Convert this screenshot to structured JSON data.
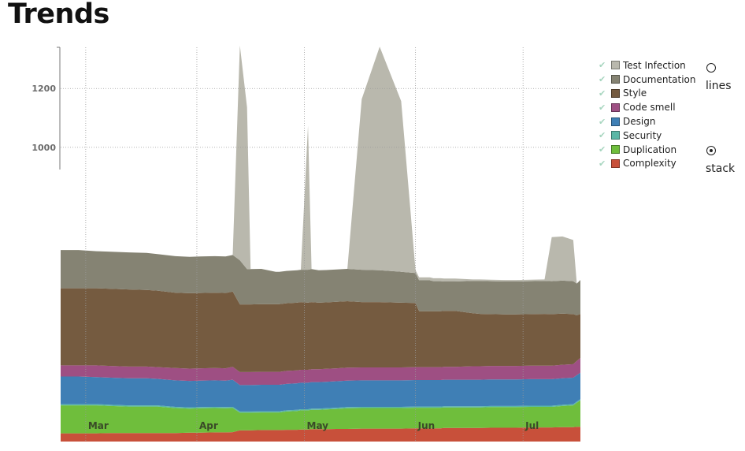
{
  "page": {
    "title": "Trends"
  },
  "chart_data": {
    "type": "area",
    "stacked": true,
    "x": [
      "02-23",
      "02-28",
      "03-04",
      "03-08",
      "03-13",
      "03-18",
      "03-21",
      "03-26",
      "03-30",
      "04-02",
      "04-06",
      "04-09",
      "04-11",
      "04-13",
      "04-15",
      "04-16",
      "04-19",
      "04-23",
      "04-24",
      "04-26",
      "04-29",
      "04-30",
      "05-02",
      "05-03",
      "05-05",
      "05-07",
      "05-10",
      "05-13",
      "05-17",
      "05-22",
      "05-28",
      "06-01",
      "06-02",
      "06-05",
      "06-06",
      "06-08",
      "06-09",
      "06-12",
      "06-17",
      "06-19",
      "06-22",
      "06-26",
      "06-29",
      "07-03",
      "07-07",
      "07-09",
      "07-12",
      "07-15",
      "07-16",
      "07-17"
    ],
    "x_ticks": [
      "Mar",
      "Apr",
      "May",
      "Jun",
      "Jul"
    ],
    "x_tick_dates": [
      "03-01",
      "04-01",
      "05-01",
      "06-01",
      "07-01"
    ],
    "y_ticks": [
      1000,
      1200
    ],
    "ylim": [
      0,
      1340
    ],
    "grid": true,
    "legend_position": "right",
    "series": [
      {
        "name": "Complexity",
        "color": "#c8503a",
        "values": [
          28,
          28,
          28,
          29,
          29,
          29,
          29,
          29,
          30,
          30,
          31,
          31,
          32,
          38,
          38,
          38,
          39,
          39,
          39,
          40,
          40,
          41,
          41,
          42,
          42,
          42,
          43,
          43,
          44,
          44,
          44,
          45,
          45,
          45,
          45,
          45,
          46,
          46,
          46,
          46,
          47,
          47,
          47,
          48,
          48,
          48,
          49,
          49,
          50,
          50
        ]
      },
      {
        "name": "Duplication",
        "color": "#6fbe3c",
        "values": [
          95,
          95,
          95,
          92,
          90,
          90,
          90,
          85,
          82,
          83,
          83,
          82,
          82,
          60,
          60,
          60,
          60,
          60,
          60,
          62,
          64,
          65,
          65,
          66,
          66,
          67,
          68,
          70,
          70,
          70,
          70,
          70,
          70,
          70,
          70,
          70,
          70,
          70,
          70,
          70,
          70,
          70,
          70,
          70,
          70,
          70,
          72,
          74,
          82,
          90
        ]
      },
      {
        "name": "Security",
        "color": "#5ab7a6",
        "values": [
          4,
          4,
          4,
          4,
          4,
          4,
          4,
          4,
          4,
          4,
          4,
          4,
          4,
          4,
          4,
          4,
          4,
          4,
          4,
          4,
          4,
          4,
          4,
          4,
          4,
          4,
          4,
          4,
          4,
          4,
          4,
          4,
          4,
          4,
          4,
          4,
          4,
          4,
          4,
          4,
          4,
          4,
          4,
          4,
          4,
          4,
          4,
          4,
          4,
          4
        ]
      },
      {
        "name": "Design",
        "color": "#3f7fb5",
        "values": [
          94,
          94,
          92,
          92,
          92,
          92,
          90,
          90,
          90,
          90,
          90,
          90,
          92,
          90,
          90,
          90,
          90,
          90,
          90,
          90,
          90,
          90,
          90,
          90,
          90,
          90,
          90,
          90,
          90,
          90,
          90,
          90,
          90,
          90,
          90,
          90,
          90,
          90,
          90,
          90,
          90,
          90,
          90,
          90,
          90,
          90,
          90,
          90,
          90,
          90
        ]
      },
      {
        "name": "Code smell",
        "color": "#9e4f83",
        "values": [
          38,
          38,
          40,
          40,
          40,
          40,
          40,
          42,
          42,
          42,
          42,
          42,
          44,
          44,
          44,
          44,
          44,
          44,
          44,
          44,
          44,
          44,
          44,
          44,
          44,
          44,
          44,
          44,
          44,
          44,
          44,
          44,
          44,
          44,
          44,
          44,
          44,
          44,
          46,
          46,
          46,
          46,
          46,
          46,
          46,
          46,
          46,
          46,
          48,
          50
        ]
      },
      {
        "name": "Style",
        "color": "#755b40",
        "values": [
          262,
          262,
          262,
          262,
          262,
          260,
          260,
          256,
          256,
          256,
          256,
          256,
          256,
          230,
          230,
          230,
          230,
          230,
          230,
          230,
          230,
          230,
          228,
          228,
          226,
          226,
          226,
          226,
          222,
          222,
          220,
          218,
          190,
          190,
          190,
          190,
          190,
          190,
          180,
          178,
          176,
          175,
          175,
          175,
          176,
          175,
          174,
          170,
          155,
          150
        ]
      },
      {
        "name": "Documentation",
        "color": "#858373",
        "values": [
          130,
          130,
          126,
          126,
          126,
          126,
          124,
          124,
          124,
          124,
          124,
          124,
          124,
          150,
          120,
          120,
          120,
          110,
          110,
          110,
          110,
          110,
          112,
          112,
          110,
          110,
          110,
          110,
          110,
          108,
          105,
          102,
          105,
          105,
          102,
          102,
          100,
          100,
          110,
          112,
          112,
          112,
          112,
          112,
          112,
          112,
          112,
          112,
          108,
          115
        ]
      },
      {
        "name": "Test Infection",
        "color": "#b9b8ad",
        "values": [
          0,
          0,
          0,
          0,
          0,
          0,
          0,
          0,
          0,
          0,
          0,
          0,
          0,
          730,
          550,
          0,
          0,
          0,
          0,
          0,
          0,
          0,
          490,
          0,
          0,
          0,
          0,
          0,
          580,
          760,
          580,
          10,
          10,
          10,
          10,
          10,
          10,
          10,
          5,
          5,
          5,
          5,
          5,
          5,
          5,
          150,
          150,
          140,
          0,
          0
        ]
      }
    ]
  },
  "legend": {
    "items": [
      {
        "label": "Test Infection",
        "color": "#b9b8ad"
      },
      {
        "label": "Documentation",
        "color": "#858373"
      },
      {
        "label": "Style",
        "color": "#755b40"
      },
      {
        "label": "Code smell",
        "color": "#9e4f83"
      },
      {
        "label": "Design",
        "color": "#3f7fb5"
      },
      {
        "label": "Security",
        "color": "#5ab7a6"
      },
      {
        "label": "Duplication",
        "color": "#6fbe3c"
      },
      {
        "label": "Complexity",
        "color": "#c8503a"
      }
    ]
  },
  "mode": {
    "lines_label": "lines",
    "stack_label": "stack",
    "selected": "stack"
  }
}
